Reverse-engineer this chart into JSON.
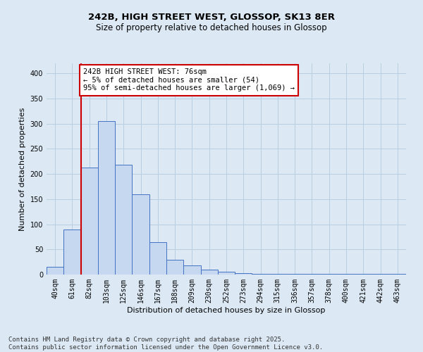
{
  "title_line1": "242B, HIGH STREET WEST, GLOSSOP, SK13 8ER",
  "title_line2": "Size of property relative to detached houses in Glossop",
  "xlabel": "Distribution of detached houses by size in Glossop",
  "ylabel": "Number of detached properties",
  "categories": [
    "40sqm",
    "61sqm",
    "82sqm",
    "103sqm",
    "125sqm",
    "146sqm",
    "167sqm",
    "188sqm",
    "209sqm",
    "230sqm",
    "252sqm",
    "273sqm",
    "294sqm",
    "315sqm",
    "336sqm",
    "357sqm",
    "378sqm",
    "400sqm",
    "421sqm",
    "442sqm",
    "463sqm"
  ],
  "values": [
    15,
    90,
    213,
    305,
    218,
    160,
    65,
    30,
    18,
    10,
    6,
    3,
    2,
    1,
    1,
    2,
    1,
    1,
    1,
    1,
    1
  ],
  "bar_color": "#c5d8f0",
  "bar_edge_color": "#4472c4",
  "vline_x": 1.5,
  "vline_color": "#cc0000",
  "annotation_text": "242B HIGH STREET WEST: 76sqm\n← 5% of detached houses are smaller (54)\n95% of semi-detached houses are larger (1,069) →",
  "annotation_box_color": "#ffffff",
  "annotation_box_edge": "#cc0000",
  "grid_color": "#b8cfe0",
  "background_color": "#dce9f5",
  "plot_bg_color": "#dce9f5",
  "ylim": [
    0,
    420
  ],
  "yticks": [
    0,
    50,
    100,
    150,
    200,
    250,
    300,
    350,
    400
  ],
  "footer_text": "Contains HM Land Registry data © Crown copyright and database right 2025.\nContains public sector information licensed under the Open Government Licence v3.0.",
  "title_fontsize": 9.5,
  "subtitle_fontsize": 8.5,
  "axis_label_fontsize": 8,
  "tick_fontsize": 7,
  "annotation_fontsize": 7.5,
  "footer_fontsize": 6.5
}
